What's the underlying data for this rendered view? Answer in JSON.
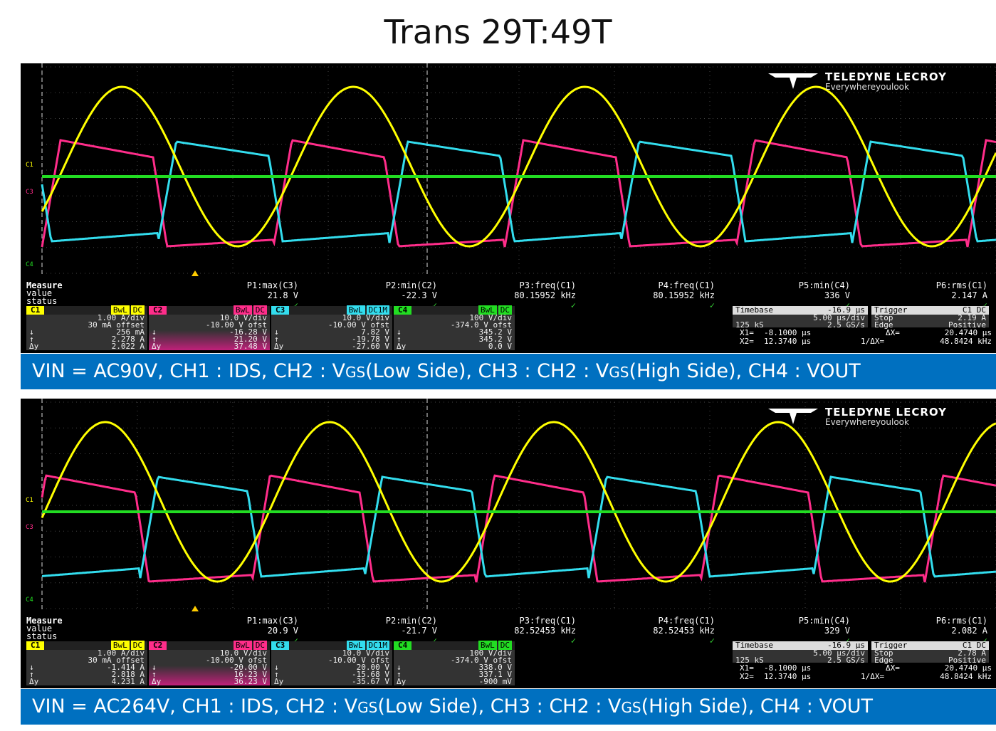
{
  "title": "Trans 29T:49T",
  "panels": [
    {
      "logo": {
        "brand": "TELEDYNE LECROY",
        "tagline": "Everywhereyoulook"
      },
      "channel_markers": [
        "C1",
        "C3",
        "C4"
      ],
      "measure": {
        "label": "Measure",
        "value_label": "value",
        "status_label": "status",
        "params": [
          {
            "name": "P1:max(C3)",
            "value": "21.8 V"
          },
          {
            "name": "P2:min(C2)",
            "value": "-22.3 V"
          },
          {
            "name": "P3:freq(C1)",
            "value": "80.15952 kHz"
          },
          {
            "name": "P4:freq(C1)",
            "value": "80.15952 kHz"
          },
          {
            "name": "P5:min(C4)",
            "value": "336 V"
          },
          {
            "name": "P6:rms(C1)",
            "value": "2.147 A"
          }
        ]
      },
      "channels": [
        {
          "id": "C1",
          "flags": [
            "BwL",
            "DC"
          ],
          "scale": "1.00 A/div",
          "offset": "30 mA offset",
          "down": "256 mA",
          "up": "2.278 A",
          "delta": "2.022 A",
          "color": "#ffff00"
        },
        {
          "id": "C2",
          "flags": [
            "BwL",
            "DC"
          ],
          "scale": "10.0 V/div",
          "offset": "-10.00 V ofst",
          "down": "-16.28 V",
          "up": "21.20 V",
          "delta": "37.48 V",
          "color": "#ff2d8a"
        },
        {
          "id": "C3",
          "flags": [
            "BwL",
            "DC1M"
          ],
          "scale": "10.0 V/div",
          "offset": "-10.00 V ofst",
          "down": "7.82 V",
          "up": "-19.78 V",
          "delta": "-27.60 V",
          "color": "#33ddee"
        },
        {
          "id": "C4",
          "flags": [
            "BwL",
            "DC"
          ],
          "scale": "100 V/div",
          "offset": "-374.0 V ofst",
          "down": "345.2 V",
          "up": "345.2 V",
          "delta": "0.0 V",
          "color": "#22dd22"
        }
      ],
      "timebase": {
        "label": "Timebase",
        "pos": "-16.9 µs",
        "div": "5.00 µs/div",
        "samples": "125 kS",
        "rate": "2.5 GS/s"
      },
      "trigger": {
        "label": "Trigger",
        "src": "C1 DC",
        "mode": "Stop",
        "level": "2.19 A",
        "type": "Edge",
        "slope": "Positive"
      },
      "cursors": {
        "x1_label": "X1=",
        "x1": "-8.1000 µs",
        "x2_label": "X2=",
        "x2": "12.3740 µs",
        "dx_label": "ΔX=",
        "dx": "20.4740 µs",
        "inv_label": "1/ΔX=",
        "inv": "48.8424 kHz"
      },
      "banner": {
        "pre": "VIN = AC90V, CH1 : IDS, CH2 : V",
        "sub1": "GS",
        "mid1": "(Low Side), CH3 : CH2 : V",
        "sub2": "GS",
        "post": "(High Side), CH4 : VOUT"
      }
    },
    {
      "logo": {
        "brand": "TELEDYNE LECROY",
        "tagline": "Everywhereyoulook"
      },
      "channel_markers": [
        "C1",
        "C3",
        "C4"
      ],
      "measure": {
        "label": "Measure",
        "value_label": "value",
        "status_label": "status",
        "params": [
          {
            "name": "P1:max(C3)",
            "value": "20.9 V"
          },
          {
            "name": "P2:min(C2)",
            "value": "-21.7 V"
          },
          {
            "name": "P3:freq(C1)",
            "value": "82.52453 kHz"
          },
          {
            "name": "P4:freq(C1)",
            "value": "82.52453 kHz"
          },
          {
            "name": "P5:min(C4)",
            "value": "329 V"
          },
          {
            "name": "P6:rms(C1)",
            "value": "2.082 A"
          }
        ]
      },
      "channels": [
        {
          "id": "C1",
          "flags": [
            "BwL",
            "DC"
          ],
          "scale": "1.00 A/div",
          "offset": "30 mA offset",
          "down": "-1.414 A",
          "up": "2.818 A",
          "delta": "4.231 A",
          "color": "#ffff00"
        },
        {
          "id": "C2",
          "flags": [
            "BwL",
            "DC"
          ],
          "scale": "10.0 V/div",
          "offset": "-10.00 V ofst",
          "down": "-20.00 V",
          "up": "16.23 V",
          "delta": "36.23 V",
          "color": "#ff2d8a"
        },
        {
          "id": "C3",
          "flags": [
            "BwL",
            "DC1M"
          ],
          "scale": "10.0 V/div",
          "offset": "-10.00 V ofst",
          "down": "20.00 V",
          "up": "-15.68 V",
          "delta": "-35.67 V",
          "color": "#33ddee"
        },
        {
          "id": "C4",
          "flags": [
            "BwL",
            "DC"
          ],
          "scale": "100 V/div",
          "offset": "-374.0 V ofst",
          "down": "338.0 V",
          "up": "337.1 V",
          "delta": "-900 mV",
          "color": "#22dd22"
        }
      ],
      "timebase": {
        "label": "Timebase",
        "pos": "-16.9 µs",
        "div": "5.00 µs/div",
        "samples": "125 kS",
        "rate": "2.5 GS/s"
      },
      "trigger": {
        "label": "Trigger",
        "src": "C1 DC",
        "mode": "Stop",
        "level": "2.78 A",
        "type": "Edge",
        "slope": "Positive"
      },
      "cursors": {
        "x1_label": "X1=",
        "x1": "-8.1000 µs",
        "x2_label": "X2=",
        "x2": "12.3740 µs",
        "dx_label": "ΔX=",
        "dx": "20.4740 µs",
        "inv_label": "1/ΔX=",
        "inv": "48.8424 kHz"
      },
      "banner": {
        "pre": "VIN = AC264V, CH1 : IDS, CH2 : V",
        "sub1": "GS",
        "mid1": "(Low Side), CH3 : CH2 : V",
        "sub2": "GS",
        "post": "(High Side), CH4 : VOUT"
      }
    }
  ]
}
